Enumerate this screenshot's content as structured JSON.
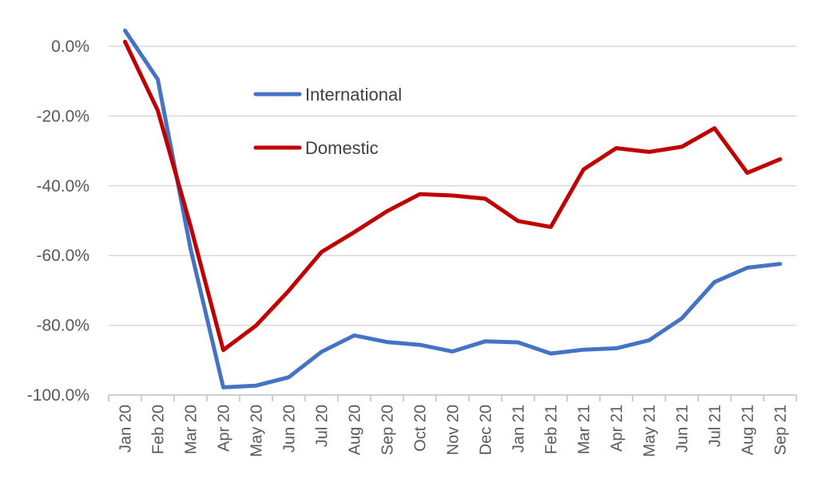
{
  "chart_data": {
    "type": "line",
    "title": "",
    "xlabel": "",
    "ylabel": "",
    "categories": [
      "Jan 20",
      "Feb 20",
      "Mar 20",
      "Apr 20",
      "May 20",
      "Jun 20",
      "Jul 20",
      "Aug 20",
      "Sep 20",
      "Oct 20",
      "Nov 20",
      "Dec 20",
      "Jan 21",
      "Feb 21",
      "Mar 21",
      "Apr 21",
      "May 21",
      "Jun 21",
      "Jul 21",
      "Aug 21",
      "Sep 21"
    ],
    "ylim": [
      -100,
      0
    ],
    "yticks": [
      0,
      -20,
      -40,
      -60,
      -80,
      -100
    ],
    "ytick_labels": [
      "0.0%",
      "-20.0%",
      "-40.0%",
      "-60.0%",
      "-80.0%",
      "-100.0%"
    ],
    "grid": true,
    "legend_position": "upper-left-inside",
    "series": [
      {
        "name": "International",
        "color": "#4472C4",
        "values": [
          4.5,
          -9.5,
          -58.0,
          -97.8,
          -97.3,
          -94.9,
          -87.6,
          -82.9,
          -84.8,
          -85.6,
          -87.5,
          -84.6,
          -84.9,
          -88.1,
          -87.0,
          -86.6,
          -84.3,
          -78.0,
          -67.6,
          -63.5,
          -62.4
        ]
      },
      {
        "name": "Domestic",
        "color": "#C00000",
        "values": [
          1.3,
          -18.4,
          -51.5,
          -87.1,
          -80.1,
          -70.1,
          -59.0,
          -53.3,
          -47.3,
          -42.4,
          -42.8,
          -43.7,
          -50.1,
          -51.8,
          -35.3,
          -29.2,
          -30.3,
          -28.8,
          -23.5,
          -36.3,
          -32.4
        ]
      }
    ]
  }
}
